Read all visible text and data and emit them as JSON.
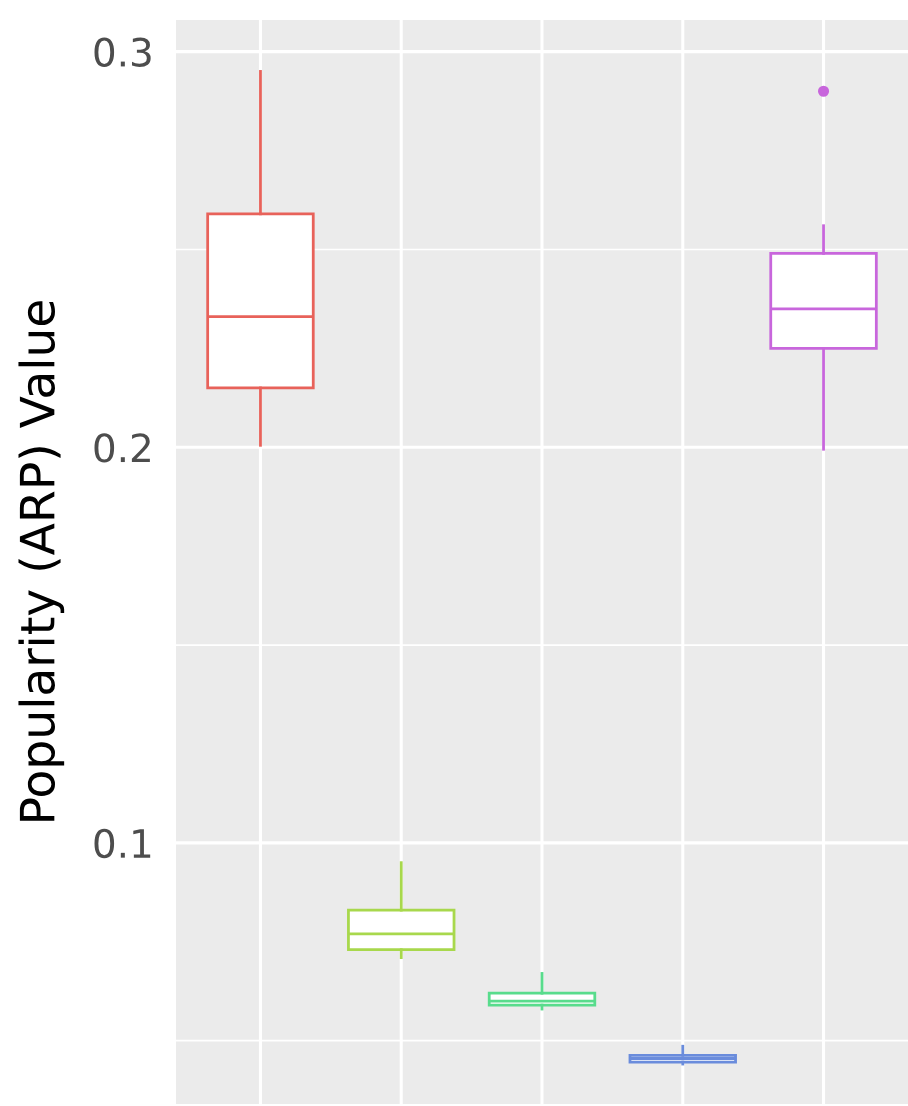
{
  "chart_data": {
    "type": "box",
    "ylabel": "Popularity (ARP) Value",
    "categories": [
      null,
      null,
      null,
      null,
      null
    ],
    "colors": [
      "#e8625a",
      "#a8d84c",
      "#58dc8c",
      "#6a8cdc",
      "#c866dc"
    ],
    "boxes": [
      {
        "low": 0.2005,
        "q1": 0.215,
        "median": 0.233,
        "q3": 0.259,
        "high": 0.295
      },
      {
        "low": 0.071,
        "q1": 0.073,
        "median": 0.077,
        "q3": 0.083,
        "high": 0.095
      },
      {
        "low": 0.058,
        "q1": 0.059,
        "median": 0.06,
        "q3": 0.062,
        "high": 0.067
      },
      {
        "low": 0.0441,
        "q1": 0.0446,
        "median": 0.0455,
        "q3": 0.0463,
        "high": 0.0486
      },
      {
        "low": 0.1995,
        "q1": 0.225,
        "median": 0.235,
        "q3": 0.249,
        "high": 0.256,
        "outliers": [
          0.29
        ]
      }
    ],
    "ylim": [
      0.034,
      0.308
    ],
    "yticks": [
      {
        "value": 0.05,
        "label": null
      },
      0.1,
      {
        "value": 0.15,
        "label": null
      },
      0.2,
      {
        "value": 0.25,
        "label": null
      },
      0.3
    ],
    "grid": true,
    "tick_labels": "y"
  }
}
